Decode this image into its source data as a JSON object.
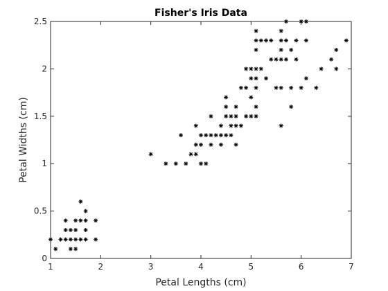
{
  "chart_data": {
    "type": "scatter",
    "title": "Fisher's Iris Data",
    "xlabel": "Petal Lengths (cm)",
    "ylabel": "Petal Widths (cm)",
    "xlim": [
      1,
      7
    ],
    "ylim": [
      0,
      2.5
    ],
    "x_ticks": [
      1,
      2,
      3,
      4,
      5,
      6,
      7
    ],
    "x_tick_labels": [
      "1",
      "2",
      "3",
      "4",
      "5",
      "6",
      "7"
    ],
    "y_ticks": [
      0,
      0.5,
      1,
      1.5,
      2,
      2.5
    ],
    "y_tick_labels": [
      "0",
      "0.5",
      "1",
      "1.5",
      "2",
      "2.5"
    ],
    "grid": false,
    "marker": "asterisk",
    "marker_color": "#000000",
    "points": [
      [
        1.0,
        0.2
      ],
      [
        1.1,
        0.1
      ],
      [
        1.2,
        0.2
      ],
      [
        1.3,
        0.2
      ],
      [
        1.4,
        0.2
      ],
      [
        1.5,
        0.2
      ],
      [
        1.6,
        0.2
      ],
      [
        1.7,
        0.2
      ],
      [
        1.9,
        0.2
      ],
      [
        1.3,
        0.3
      ],
      [
        1.4,
        0.3
      ],
      [
        1.5,
        0.3
      ],
      [
        1.7,
        0.3
      ],
      [
        1.3,
        0.4
      ],
      [
        1.5,
        0.4
      ],
      [
        1.6,
        0.4
      ],
      [
        1.7,
        0.4
      ],
      [
        1.9,
        0.4
      ],
      [
        1.4,
        0.1
      ],
      [
        1.5,
        0.1
      ],
      [
        1.7,
        0.5
      ],
      [
        1.6,
        0.6
      ],
      [
        3.0,
        1.1
      ],
      [
        3.3,
        1.0
      ],
      [
        3.5,
        1.0
      ],
      [
        3.7,
        1.0
      ],
      [
        4.0,
        1.0
      ],
      [
        4.1,
        1.0
      ],
      [
        3.8,
        1.1
      ],
      [
        3.9,
        1.1
      ],
      [
        3.9,
        1.2
      ],
      [
        4.0,
        1.2
      ],
      [
        4.2,
        1.2
      ],
      [
        4.4,
        1.2
      ],
      [
        4.7,
        1.2
      ],
      [
        3.6,
        1.3
      ],
      [
        4.0,
        1.3
      ],
      [
        4.1,
        1.3
      ],
      [
        4.2,
        1.3
      ],
      [
        4.3,
        1.3
      ],
      [
        4.4,
        1.3
      ],
      [
        4.5,
        1.3
      ],
      [
        4.6,
        1.3
      ],
      [
        3.9,
        1.4
      ],
      [
        4.4,
        1.4
      ],
      [
        4.6,
        1.4
      ],
      [
        4.7,
        1.4
      ],
      [
        4.8,
        1.4
      ],
      [
        5.6,
        1.4
      ],
      [
        4.2,
        1.5
      ],
      [
        4.5,
        1.5
      ],
      [
        4.6,
        1.5
      ],
      [
        4.7,
        1.5
      ],
      [
        4.9,
        1.5
      ],
      [
        5.0,
        1.5
      ],
      [
        5.1,
        1.5
      ],
      [
        4.5,
        1.6
      ],
      [
        4.7,
        1.6
      ],
      [
        5.1,
        1.6
      ],
      [
        5.8,
        1.6
      ],
      [
        4.5,
        1.7
      ],
      [
        5.0,
        1.7
      ],
      [
        4.8,
        1.8
      ],
      [
        4.9,
        1.8
      ],
      [
        5.1,
        1.8
      ],
      [
        5.5,
        1.8
      ],
      [
        5.6,
        1.8
      ],
      [
        5.8,
        1.8
      ],
      [
        6.0,
        1.8
      ],
      [
        6.3,
        1.8
      ],
      [
        5.0,
        1.9
      ],
      [
        5.1,
        1.9
      ],
      [
        5.3,
        1.9
      ],
      [
        6.1,
        1.9
      ],
      [
        4.9,
        2.0
      ],
      [
        5.0,
        2.0
      ],
      [
        5.1,
        2.0
      ],
      [
        5.2,
        2.0
      ],
      [
        6.4,
        2.0
      ],
      [
        6.7,
        2.0
      ],
      [
        5.4,
        2.1
      ],
      [
        5.5,
        2.1
      ],
      [
        5.6,
        2.1
      ],
      [
        5.7,
        2.1
      ],
      [
        5.9,
        2.1
      ],
      [
        6.6,
        2.1
      ],
      [
        5.1,
        2.2
      ],
      [
        5.6,
        2.2
      ],
      [
        5.8,
        2.2
      ],
      [
        6.7,
        2.2
      ],
      [
        5.1,
        2.3
      ],
      [
        5.2,
        2.3
      ],
      [
        5.3,
        2.3
      ],
      [
        5.4,
        2.3
      ],
      [
        5.6,
        2.3
      ],
      [
        5.7,
        2.3
      ],
      [
        5.9,
        2.3
      ],
      [
        6.1,
        2.3
      ],
      [
        6.9,
        2.3
      ],
      [
        5.1,
        2.4
      ],
      [
        5.6,
        2.4
      ],
      [
        5.7,
        2.5
      ],
      [
        6.0,
        2.5
      ],
      [
        6.1,
        2.5
      ]
    ]
  }
}
